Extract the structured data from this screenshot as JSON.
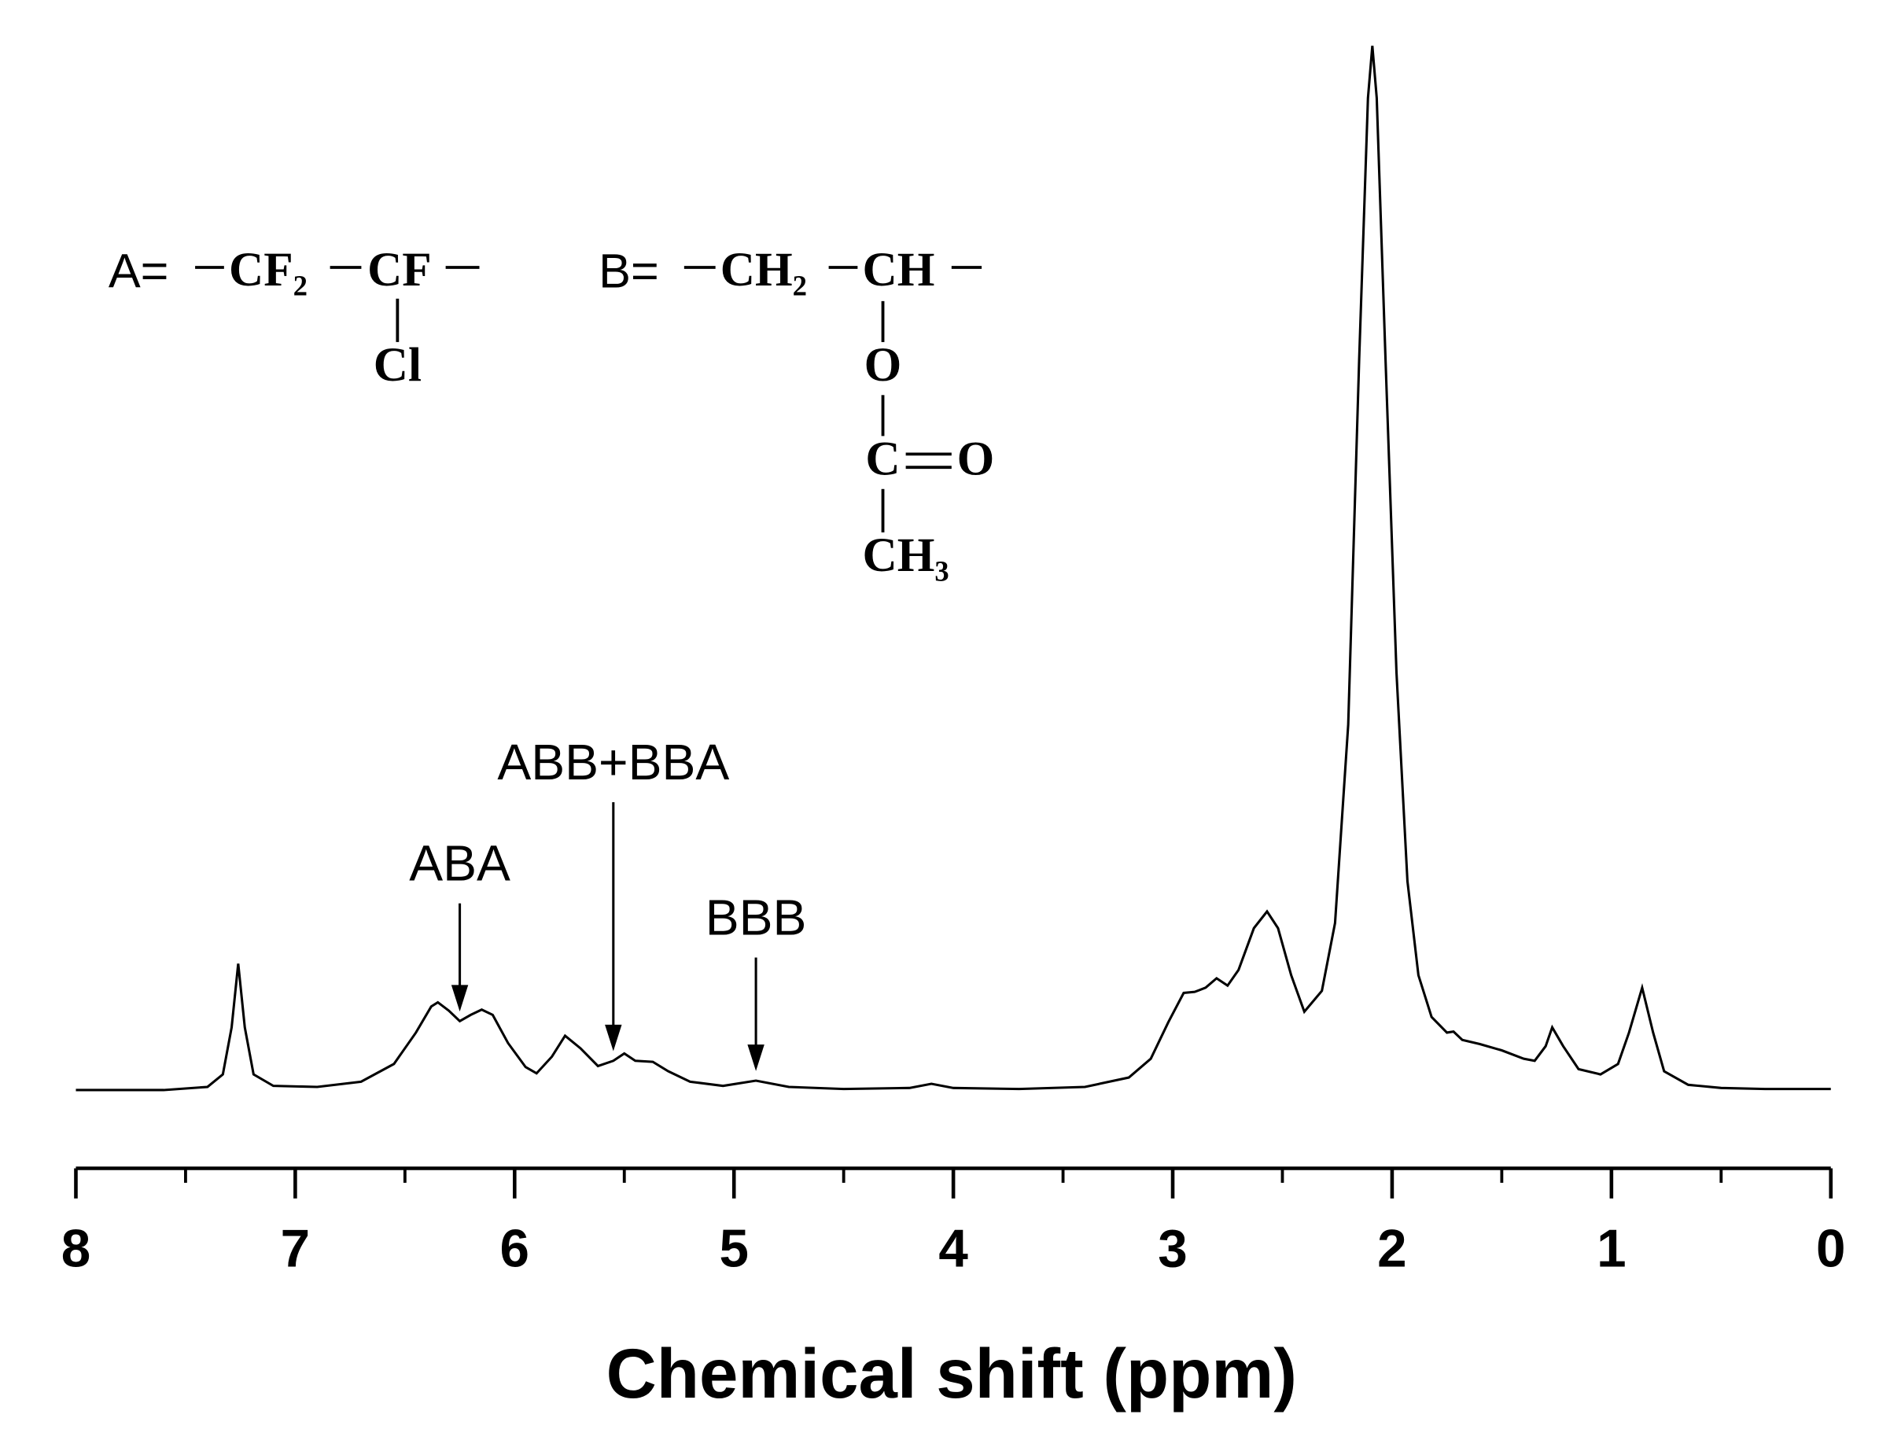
{
  "chart_data": {
    "type": "line",
    "x_label": "Chemical shift (ppm)",
    "xlim": [
      8,
      0
    ],
    "xticks": [
      8,
      7,
      6,
      5,
      4,
      3,
      2,
      1,
      0
    ],
    "xminor": [
      7.5,
      6.5,
      5.5,
      4.5,
      3.5,
      2.5,
      1.5,
      0.5
    ],
    "ylim": [
      0,
      100
    ],
    "color": "#000000",
    "x": [
      8.0,
      7.6,
      7.4,
      7.33,
      7.29,
      7.26,
      7.23,
      7.19,
      7.1,
      6.9,
      6.7,
      6.55,
      6.45,
      6.38,
      6.35,
      6.3,
      6.25,
      6.2,
      6.15,
      6.1,
      6.03,
      5.95,
      5.9,
      5.83,
      5.77,
      5.7,
      5.62,
      5.55,
      5.5,
      5.45,
      5.37,
      5.3,
      5.2,
      5.05,
      4.9,
      4.75,
      4.5,
      4.2,
      4.1,
      4.0,
      3.7,
      3.4,
      3.2,
      3.1,
      3.02,
      2.95,
      2.9,
      2.85,
      2.8,
      2.75,
      2.7,
      2.63,
      2.57,
      2.52,
      2.46,
      2.4,
      2.32,
      2.26,
      2.2,
      2.15,
      2.11,
      2.09,
      2.07,
      2.03,
      1.98,
      1.93,
      1.88,
      1.82,
      1.75,
      1.72,
      1.68,
      1.6,
      1.5,
      1.4,
      1.35,
      1.3,
      1.27,
      1.22,
      1.15,
      1.05,
      0.97,
      0.92,
      0.86,
      0.81,
      0.76,
      0.65,
      0.5,
      0.3,
      0.0
    ],
    "values": [
      0,
      0,
      0.3,
      1.5,
      6,
      12.1,
      6,
      1.5,
      0.4,
      0.3,
      0.8,
      2.5,
      5.5,
      8,
      8.4,
      7.6,
      6.6,
      7.2,
      7.7,
      7.2,
      4.5,
      2.2,
      1.6,
      3.2,
      5.2,
      4.0,
      2.3,
      2.8,
      3.5,
      2.8,
      2.7,
      1.8,
      0.8,
      0.4,
      0.9,
      0.3,
      0.1,
      0.2,
      0.6,
      0.2,
      0.1,
      0.3,
      1.2,
      3.0,
      6.5,
      9.3,
      9.4,
      9.8,
      10.7,
      10.0,
      11.5,
      15.5,
      17.1,
      15.5,
      11,
      7.5,
      9.5,
      16,
      35,
      70,
      95,
      100,
      95,
      70,
      40,
      20,
      11,
      7,
      5.5,
      5.6,
      4.8,
      4.4,
      3.8,
      3.0,
      2.8,
      4.2,
      6.0,
      4.2,
      2.0,
      1.5,
      2.5,
      5.5,
      9.8,
      5.5,
      1.8,
      0.5,
      0.2,
      0.1,
      0.1
    ],
    "annotations": [
      {
        "text": "ABA",
        "x": 6.25
      },
      {
        "text": "ABB+BBA",
        "x": 5.55
      },
      {
        "text": "BBB",
        "x": 4.9
      }
    ],
    "structure_a": {
      "label": "A=",
      "groups": [
        "CF₂",
        "CF"
      ],
      "substituent": "Cl"
    },
    "structure_b": {
      "label": "B=",
      "groups": [
        "CH₂",
        "CH"
      ],
      "chain": [
        "O",
        "C",
        "CH₃"
      ],
      "carbonyl": "O"
    }
  }
}
